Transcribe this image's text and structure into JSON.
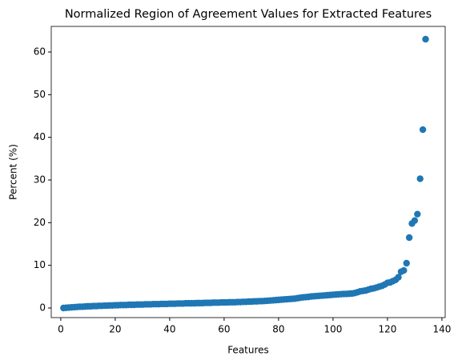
{
  "chart_data": {
    "type": "scatter",
    "title": "Normalized Region of Agreement Values for Extracted Features",
    "x_label": "Features",
    "y_label": "Percent (%)",
    "color": "#1f77b4",
    "x": [
      1,
      2,
      3,
      4,
      5,
      6,
      7,
      8,
      9,
      10,
      11,
      12,
      13,
      14,
      15,
      16,
      17,
      18,
      19,
      20,
      21,
      22,
      23,
      24,
      25,
      26,
      27,
      28,
      29,
      30,
      31,
      32,
      33,
      34,
      35,
      36,
      37,
      38,
      39,
      40,
      41,
      42,
      43,
      44,
      45,
      46,
      47,
      48,
      49,
      50,
      51,
      52,
      53,
      54,
      55,
      56,
      57,
      58,
      59,
      60,
      61,
      62,
      63,
      64,
      65,
      66,
      67,
      68,
      69,
      70,
      71,
      72,
      73,
      74,
      75,
      76,
      77,
      78,
      79,
      80,
      81,
      82,
      83,
      84,
      85,
      86,
      87,
      88,
      89,
      90,
      91,
      92,
      93,
      94,
      95,
      96,
      97,
      98,
      99,
      100,
      101,
      102,
      103,
      104,
      105,
      106,
      107,
      108,
      109,
      110,
      111,
      112,
      113,
      114,
      115,
      116,
      117,
      118,
      119,
      120,
      121,
      122,
      123,
      124,
      125,
      126,
      127,
      128,
      129,
      130,
      131,
      132,
      133,
      134
    ],
    "values": [
      0.0,
      0.05,
      0.1,
      0.15,
      0.2,
      0.25,
      0.3,
      0.3,
      0.35,
      0.4,
      0.4,
      0.45,
      0.45,
      0.5,
      0.5,
      0.55,
      0.55,
      0.6,
      0.6,
      0.65,
      0.65,
      0.7,
      0.7,
      0.7,
      0.75,
      0.75,
      0.75,
      0.8,
      0.8,
      0.8,
      0.85,
      0.85,
      0.85,
      0.9,
      0.9,
      0.9,
      0.95,
      0.95,
      0.95,
      1.0,
      1.0,
      1.0,
      1.05,
      1.05,
      1.05,
      1.1,
      1.1,
      1.1,
      1.1,
      1.15,
      1.15,
      1.15,
      1.2,
      1.2,
      1.2,
      1.25,
      1.25,
      1.25,
      1.3,
      1.3,
      1.3,
      1.35,
      1.35,
      1.35,
      1.4,
      1.4,
      1.45,
      1.45,
      1.5,
      1.5,
      1.55,
      1.55,
      1.6,
      1.6,
      1.65,
      1.7,
      1.75,
      1.8,
      1.85,
      1.9,
      1.95,
      2.0,
      2.05,
      2.1,
      2.15,
      2.2,
      2.3,
      2.4,
      2.5,
      2.55,
      2.6,
      2.7,
      2.75,
      2.8,
      2.85,
      2.9,
      2.95,
      3.0,
      3.05,
      3.1,
      3.15,
      3.2,
      3.25,
      3.3,
      3.3,
      3.35,
      3.4,
      3.5,
      3.7,
      3.9,
      4.0,
      4.1,
      4.3,
      4.5,
      4.6,
      4.8,
      5.0,
      5.2,
      5.5,
      5.9,
      6.0,
      6.3,
      6.6,
      7.2,
      8.5,
      8.8,
      10.5,
      16.5,
      19.8,
      20.5,
      22.0,
      30.3,
      41.8,
      63.0
    ],
    "xlim": [
      -3.5,
      141.2
    ],
    "ylim": [
      -2.25,
      66.0
    ],
    "xticks": [
      0,
      20,
      40,
      60,
      80,
      100,
      120,
      140
    ],
    "yticks": [
      0,
      10,
      20,
      30,
      40,
      50,
      60
    ],
    "grid": false
  }
}
